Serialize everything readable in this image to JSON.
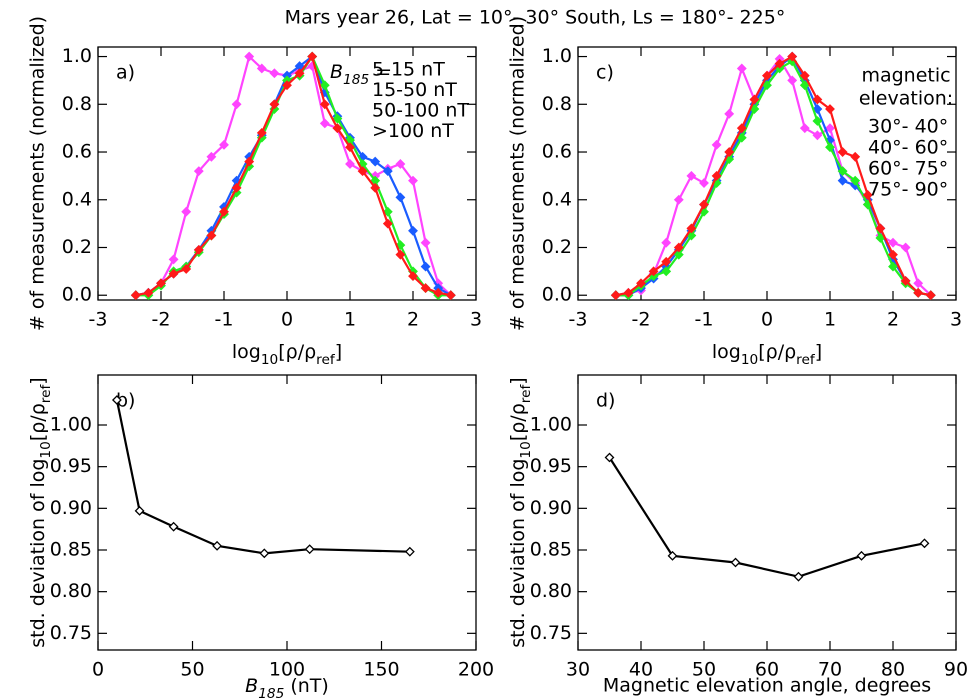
{
  "chart_data": [
    {
      "type": "line",
      "title": "Mars year 26, Lat = 10°- 30° South, Ls = 180°- 225°",
      "panel_label": "a)",
      "x_label": [
        "log",
        "10",
        "[ρ/ρ",
        "ref",
        "]"
      ],
      "y_label": "# of measurements (normalized)",
      "legend_title": [
        "B",
        "185",
        " ="
      ],
      "x": [
        -2.4,
        -2.2,
        -2.0,
        -1.8,
        -1.6,
        -1.4,
        -1.2,
        -1.0,
        -0.8,
        -0.6,
        -0.4,
        -0.2,
        0.0,
        0.2,
        0.4,
        0.6,
        0.8,
        1.0,
        1.2,
        1.4,
        1.6,
        1.8,
        2.0,
        2.2,
        2.4,
        2.6
      ],
      "series": [
        {
          "name": "5-15 nT",
          "color": "#ff44ff",
          "values": [
            0,
            0.01,
            0.05,
            0.15,
            0.35,
            0.52,
            0.58,
            0.63,
            0.8,
            1.0,
            0.95,
            0.93,
            0.92,
            0.94,
            0.96,
            0.72,
            0.7,
            0.55,
            0.52,
            0.5,
            0.53,
            0.55,
            0.48,
            0.22,
            0.05,
            0
          ]
        },
        {
          "name": "15-50 nT",
          "color": "#1a5cff",
          "values": [
            0,
            0.01,
            0.05,
            0.09,
            0.12,
            0.19,
            0.27,
            0.37,
            0.48,
            0.58,
            0.67,
            0.8,
            0.92,
            0.96,
            1.0,
            0.85,
            0.75,
            0.66,
            0.58,
            0.56,
            0.52,
            0.41,
            0.27,
            0.12,
            0.03,
            0
          ]
        },
        {
          "name": "50-100 nT",
          "color": "#22ee22",
          "values": [
            0,
            0,
            0.04,
            0.1,
            0.12,
            0.18,
            0.25,
            0.34,
            0.43,
            0.54,
            0.66,
            0.78,
            0.9,
            0.92,
            1.0,
            0.88,
            0.74,
            0.65,
            0.55,
            0.48,
            0.35,
            0.21,
            0.1,
            0.03,
            0,
            0
          ]
        },
        {
          "name": ">100 nT",
          "color": "#ff1a1a",
          "values": [
            0,
            0.01,
            0.05,
            0.09,
            0.11,
            0.19,
            0.25,
            0.35,
            0.45,
            0.56,
            0.68,
            0.8,
            0.88,
            0.93,
            1.0,
            0.8,
            0.7,
            0.62,
            0.52,
            0.45,
            0.3,
            0.17,
            0.08,
            0.03,
            0.01,
            0
          ]
        }
      ],
      "xlim": [
        -3,
        3
      ],
      "ylim": [
        -0.02,
        1.04
      ],
      "xticks": [
        -3,
        -2,
        -1,
        0,
        1,
        2,
        3
      ],
      "yticks": [
        {
          "value": 0,
          "label": "0.0"
        },
        0.2,
        0.4,
        0.6,
        0.8,
        {
          "value": 1,
          "label": "1.0"
        }
      ]
    },
    {
      "type": "line",
      "panel_label": "b)",
      "x_label": [
        "B",
        "185",
        " (nT)"
      ],
      "y_label": [
        "std. deviation of log",
        "10",
        "[ρ/ρ",
        "ref",
        "]"
      ],
      "x": [
        10,
        22,
        40,
        63,
        88,
        112,
        165
      ],
      "values": [
        1.03,
        0.897,
        0.878,
        0.855,
        0.846,
        0.851,
        0.848
      ],
      "color": "#000000",
      "xlim": [
        0,
        200
      ],
      "ylim": [
        0.73,
        1.06
      ],
      "xticks": [
        0,
        50,
        100,
        150,
        200
      ],
      "yticks": [
        0.75,
        {
          "value": 0.8,
          "label": "0.80"
        },
        0.85,
        {
          "value": 0.9,
          "label": "0.90"
        },
        0.95,
        {
          "value": 1,
          "label": "1.00"
        }
      ]
    },
    {
      "type": "line",
      "panel_label": "c)",
      "x_label": [
        "log",
        "10",
        "[ρ/ρ",
        "ref",
        "]"
      ],
      "y_label": "# of measurements (normalized)",
      "legend_title": [
        "magnetic",
        "elevation:"
      ],
      "x": [
        -2.4,
        -2.2,
        -2.0,
        -1.8,
        -1.6,
        -1.4,
        -1.2,
        -1.0,
        -0.8,
        -0.6,
        -0.4,
        -0.2,
        0.0,
        0.2,
        0.4,
        0.6,
        0.8,
        1.0,
        1.2,
        1.4,
        1.6,
        1.8,
        2.0,
        2.2,
        2.4,
        2.6
      ],
      "series": [
        {
          "name": "30°- 40°",
          "color": "#ff44ff",
          "values": [
            0,
            0.01,
            0.02,
            0.09,
            0.22,
            0.4,
            0.5,
            0.47,
            0.63,
            0.76,
            0.95,
            0.82,
            0.92,
            0.99,
            0.9,
            0.7,
            0.67,
            0.7,
            0.52,
            0.47,
            0.38,
            0.25,
            0.22,
            0.2,
            0.05,
            0
          ]
        },
        {
          "name": "40°- 60°",
          "color": "#1a5cff",
          "values": [
            0,
            0,
            0.03,
            0.07,
            0.12,
            0.19,
            0.27,
            0.38,
            0.48,
            0.58,
            0.68,
            0.8,
            0.9,
            0.96,
            1.0,
            0.9,
            0.78,
            0.65,
            0.48,
            0.46,
            0.4,
            0.28,
            0.15,
            0.06,
            0.01,
            0
          ]
        },
        {
          "name": "60°- 75°",
          "color": "#22ee22",
          "values": [
            0,
            0,
            0.04,
            0.08,
            0.1,
            0.17,
            0.25,
            0.35,
            0.47,
            0.57,
            0.66,
            0.78,
            0.88,
            0.95,
            0.98,
            0.88,
            0.73,
            0.62,
            0.52,
            0.48,
            0.38,
            0.24,
            0.12,
            0.05,
            0.01,
            0
          ]
        },
        {
          "name": "75°- 90°",
          "color": "#ff1a1a",
          "values": [
            0,
            0.01,
            0.05,
            0.1,
            0.14,
            0.2,
            0.28,
            0.38,
            0.5,
            0.6,
            0.7,
            0.82,
            0.92,
            0.97,
            1.0,
            0.92,
            0.82,
            0.78,
            0.6,
            0.58,
            0.42,
            0.28,
            0.17,
            0.06,
            0.01,
            0
          ]
        }
      ],
      "xlim": [
        -3,
        3
      ],
      "ylim": [
        -0.02,
        1.04
      ],
      "xticks": [
        -3,
        -2,
        -1,
        0,
        1,
        2,
        3
      ],
      "yticks": [
        {
          "value": 0,
          "label": "0.0"
        },
        0.2,
        0.4,
        0.6,
        0.8,
        {
          "value": 1,
          "label": "1.0"
        }
      ]
    },
    {
      "type": "line",
      "panel_label": "d)",
      "x_label": "Magnetic elevation angle, degrees",
      "y_label": [
        "std. deviation of log",
        "10",
        "[ρ/ρ",
        "ref",
        "]"
      ],
      "x": [
        35,
        45,
        55,
        65,
        75,
        85
      ],
      "values": [
        0.961,
        0.843,
        0.835,
        0.818,
        0.843,
        0.858
      ],
      "color": "#000000",
      "xlim": [
        30,
        90
      ],
      "ylim": [
        0.73,
        1.06
      ],
      "xticks": [
        30,
        40,
        50,
        60,
        70,
        80,
        90
      ],
      "yticks": [
        0.75,
        {
          "value": 0.8,
          "label": "0.80"
        },
        0.85,
        {
          "value": 0.9,
          "label": "0.90"
        },
        0.95,
        {
          "value": 1,
          "label": "1.00"
        }
      ]
    }
  ]
}
